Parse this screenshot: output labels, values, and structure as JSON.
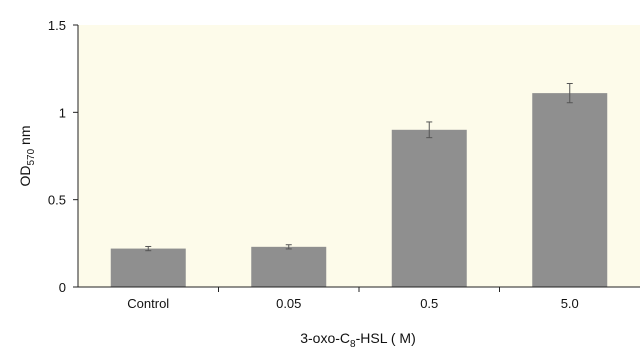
{
  "chart_data": {
    "type": "bar",
    "categories": [
      "Control",
      "0.05",
      "0.5",
      "5.0"
    ],
    "values": [
      0.22,
      0.23,
      0.9,
      1.11
    ],
    "error": [
      0.012,
      0.012,
      0.045,
      0.055
    ],
    "ylim": [
      0,
      1.5
    ],
    "yticks": [
      0,
      0.5,
      1,
      1.5
    ],
    "ytick_labels": [
      "0",
      "0.5",
      "1",
      "1.5"
    ],
    "ylabel": {
      "main": "OD",
      "sub": "570",
      "rest": " nm"
    },
    "xlabel": {
      "prefix": "3-oxo-C",
      "sub": "8",
      "rest": "-HSL (  M)"
    },
    "grid": false,
    "colors": {
      "bar": "#8f8f8f",
      "plot_bg": "#fdfbea",
      "axis": "#222222",
      "errorbar": "#555555"
    }
  }
}
